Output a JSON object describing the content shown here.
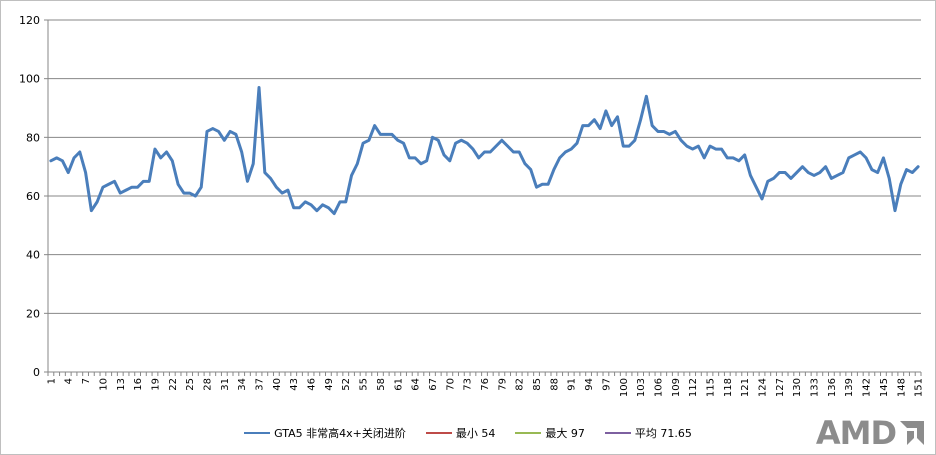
{
  "colors": {
    "series": "#4a7ebb",
    "min": "#be4b48",
    "max": "#98b954",
    "avg": "#7d60a0",
    "grid": "#878787",
    "logo": "#8c8c8c"
  },
  "legend": [
    {
      "name": "GTA5 非常高4x+关闭进阶",
      "color": "#4a7ebb"
    },
    {
      "name": "最小 54",
      "color": "#be4b48"
    },
    {
      "name": "最大 97",
      "color": "#98b954"
    },
    {
      "name": "平均 71.65",
      "color": "#7d60a0"
    }
  ],
  "logo": {
    "text": "AMD",
    "icon": "amd-arrow-icon"
  },
  "chart_data": {
    "type": "line",
    "title": "",
    "xlabel": "",
    "ylabel": "",
    "ylim": [
      0,
      120
    ],
    "yticks": [
      0,
      20,
      40,
      60,
      80,
      100,
      120
    ],
    "grid": true,
    "legend_position": "bottom",
    "x_tick_labels": [
      "1",
      "4",
      "7",
      "10",
      "13",
      "16",
      "19",
      "22",
      "25",
      "28",
      "31",
      "34",
      "37",
      "40",
      "43",
      "46",
      "49",
      "52",
      "55",
      "58",
      "61",
      "64",
      "67",
      "70",
      "73",
      "76",
      "79",
      "82",
      "85",
      "88",
      "91",
      "94",
      "97",
      "100",
      "103",
      "106",
      "109",
      "112",
      "115",
      "118",
      "121",
      "124",
      "127",
      "130",
      "133",
      "136",
      "139",
      "142",
      "145",
      "148",
      "151"
    ],
    "series": [
      {
        "name": "GTA5 非常高4x+关闭进阶",
        "values": [
          72,
          73,
          72,
          68,
          73,
          75,
          68,
          55,
          58,
          63,
          64,
          65,
          61,
          62,
          63,
          63,
          65,
          65,
          76,
          73,
          75,
          72,
          64,
          61,
          61,
          60,
          63,
          82,
          83,
          82,
          79,
          82,
          81,
          75,
          65,
          71,
          97,
          68,
          66,
          63,
          61,
          62,
          56,
          56,
          58,
          57,
          55,
          57,
          56,
          54,
          58,
          58,
          67,
          71,
          78,
          79,
          84,
          81,
          81,
          81,
          79,
          78,
          73,
          73,
          71,
          72,
          80,
          79,
          74,
          72,
          78,
          79,
          78,
          76,
          73,
          75,
          75,
          77,
          79,
          77,
          75,
          75,
          71,
          69,
          63,
          64,
          64,
          69,
          73,
          75,
          76,
          78,
          84,
          84,
          86,
          83,
          89,
          84,
          87,
          77,
          77,
          79,
          86,
          94,
          84,
          82,
          82,
          81,
          82,
          79,
          77,
          76,
          77,
          73,
          77,
          76,
          76,
          73,
          73,
          72,
          74,
          67,
          63,
          59,
          65,
          66,
          68,
          68,
          66,
          68,
          70,
          68,
          67,
          68,
          70,
          66,
          67,
          68,
          73,
          74,
          75,
          73,
          69,
          68,
          73,
          66,
          55,
          64,
          69,
          68,
          70
        ]
      }
    ]
  }
}
